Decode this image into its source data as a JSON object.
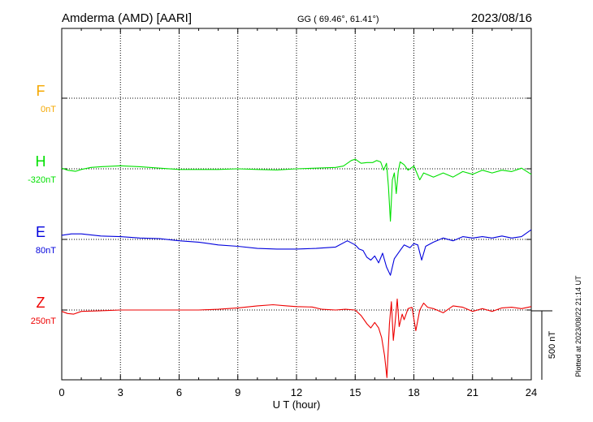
{
  "chart_data": {
    "type": "line",
    "title": "Amderma (AMD)  [AARI]",
    "coords": "GG ( 69.46°,  61.41°)",
    "date": "2023/08/16",
    "xlabel": "U T (hour)",
    "xlim": [
      0,
      24
    ],
    "xticks": [
      "0",
      "3",
      "6",
      "9",
      "12",
      "15",
      "18",
      "21",
      "24"
    ],
    "scale_label": "500 nT",
    "scale_nT": 500,
    "footer": "Plotted at 2023/08/22 21:14 UT",
    "colors": {
      "F": "#f5a800",
      "H": "#00e000",
      "E": "#0000dd",
      "Z": "#ee0000",
      "axis": "#000000"
    },
    "series": [
      {
        "name": "F",
        "baseline_label": "0nT",
        "points": []
      },
      {
        "name": "H",
        "baseline_label": "-320nT",
        "points": [
          [
            0,
            5
          ],
          [
            0.3,
            -10
          ],
          [
            0.7,
            -18
          ],
          [
            1,
            -5
          ],
          [
            1.5,
            10
          ],
          [
            2,
            15
          ],
          [
            3,
            22
          ],
          [
            4,
            15
          ],
          [
            5,
            5
          ],
          [
            6,
            -5
          ],
          [
            7,
            -5
          ],
          [
            8,
            -5
          ],
          [
            9,
            0
          ],
          [
            10,
            -5
          ],
          [
            11,
            -8
          ],
          [
            12,
            0
          ],
          [
            13,
            5
          ],
          [
            14,
            10
          ],
          [
            14.4,
            20
          ],
          [
            14.8,
            60
          ],
          [
            15,
            70
          ],
          [
            15.3,
            40
          ],
          [
            15.6,
            45
          ],
          [
            15.9,
            45
          ],
          [
            16.1,
            60
          ],
          [
            16.3,
            50
          ],
          [
            16.45,
            -10
          ],
          [
            16.6,
            40
          ],
          [
            16.7,
            -130
          ],
          [
            16.8,
            -380
          ],
          [
            16.9,
            -80
          ],
          [
            17.0,
            -30
          ],
          [
            17.1,
            -180
          ],
          [
            17.2,
            -20
          ],
          [
            17.3,
            50
          ],
          [
            17.5,
            30
          ],
          [
            17.7,
            -10
          ],
          [
            18.0,
            20
          ],
          [
            18.3,
            -80
          ],
          [
            18.5,
            -30
          ],
          [
            19,
            -60
          ],
          [
            19.5,
            -30
          ],
          [
            20,
            -60
          ],
          [
            20.5,
            -20
          ],
          [
            21,
            -40
          ],
          [
            21.5,
            -10
          ],
          [
            22,
            -30
          ],
          [
            22.5,
            -10
          ],
          [
            23,
            -20
          ],
          [
            23.5,
            5
          ],
          [
            24,
            -40
          ]
        ]
      },
      {
        "name": "E",
        "baseline_label": "80nT",
        "points": [
          [
            0,
            30
          ],
          [
            0.5,
            40
          ],
          [
            1,
            40
          ],
          [
            2,
            25
          ],
          [
            3,
            20
          ],
          [
            4,
            10
          ],
          [
            5,
            5
          ],
          [
            6,
            -10
          ],
          [
            7,
            -20
          ],
          [
            8,
            -40
          ],
          [
            9,
            -50
          ],
          [
            10,
            -65
          ],
          [
            11,
            -70
          ],
          [
            12,
            -70
          ],
          [
            13,
            -65
          ],
          [
            14,
            -55
          ],
          [
            14.6,
            -10
          ],
          [
            15,
            -40
          ],
          [
            15.2,
            -70
          ],
          [
            15.4,
            -80
          ],
          [
            15.6,
            -130
          ],
          [
            15.8,
            -150
          ],
          [
            16.0,
            -120
          ],
          [
            16.2,
            -170
          ],
          [
            16.4,
            -100
          ],
          [
            16.6,
            -200
          ],
          [
            16.8,
            -260
          ],
          [
            17.0,
            -140
          ],
          [
            17.3,
            -80
          ],
          [
            17.5,
            -40
          ],
          [
            17.8,
            -60
          ],
          [
            18.0,
            -30
          ],
          [
            18.2,
            -40
          ],
          [
            18.4,
            -150
          ],
          [
            18.6,
            -50
          ],
          [
            19,
            -20
          ],
          [
            19.5,
            10
          ],
          [
            20,
            -10
          ],
          [
            20.5,
            20
          ],
          [
            21,
            10
          ],
          [
            21.5,
            20
          ],
          [
            22,
            10
          ],
          [
            22.5,
            25
          ],
          [
            23,
            10
          ],
          [
            23.5,
            20
          ],
          [
            24,
            70
          ]
        ]
      },
      {
        "name": "Z",
        "baseline_label": "250nT",
        "points": [
          [
            0,
            -10
          ],
          [
            0.3,
            -25
          ],
          [
            0.6,
            -30
          ],
          [
            1,
            -10
          ],
          [
            2,
            -5
          ],
          [
            3,
            0
          ],
          [
            5,
            0
          ],
          [
            7,
            0
          ],
          [
            8,
            5
          ],
          [
            9,
            15
          ],
          [
            10,
            30
          ],
          [
            10.8,
            38
          ],
          [
            11.5,
            30
          ],
          [
            12,
            25
          ],
          [
            12.8,
            22
          ],
          [
            13.3,
            5
          ],
          [
            14,
            0
          ],
          [
            14.5,
            5
          ],
          [
            15,
            0
          ],
          [
            15.3,
            -40
          ],
          [
            15.6,
            -100
          ],
          [
            15.8,
            -130
          ],
          [
            16.0,
            -90
          ],
          [
            16.2,
            -130
          ],
          [
            16.35,
            -200
          ],
          [
            16.5,
            -330
          ],
          [
            16.62,
            -490
          ],
          [
            16.75,
            -100
          ],
          [
            16.85,
            60
          ],
          [
            16.95,
            -220
          ],
          [
            17.05,
            -80
          ],
          [
            17.15,
            80
          ],
          [
            17.25,
            -120
          ],
          [
            17.4,
            -30
          ],
          [
            17.5,
            -70
          ],
          [
            17.7,
            10
          ],
          [
            17.9,
            20
          ],
          [
            18.1,
            -150
          ],
          [
            18.3,
            0
          ],
          [
            18.5,
            50
          ],
          [
            18.7,
            20
          ],
          [
            19,
            10
          ],
          [
            19.5,
            -20
          ],
          [
            20,
            30
          ],
          [
            20.5,
            20
          ],
          [
            21,
            -10
          ],
          [
            21.5,
            10
          ],
          [
            22,
            -10
          ],
          [
            22.5,
            15
          ],
          [
            23,
            20
          ],
          [
            23.5,
            10
          ],
          [
            24,
            25
          ]
        ]
      }
    ]
  }
}
